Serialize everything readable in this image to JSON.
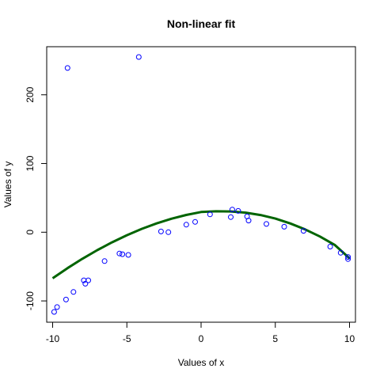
{
  "chart_data": {
    "type": "scatter",
    "title": "Non-linear fit",
    "xlabel": "Values of x",
    "ylabel": "Values of y",
    "xlim": [
      -10.4,
      10.4
    ],
    "ylim": [
      -131,
      270
    ],
    "x_ticks": [
      -10,
      -5,
      0,
      5,
      10
    ],
    "y_ticks": [
      -100,
      0,
      100,
      200
    ],
    "grid": false,
    "series": [
      {
        "kind": "points",
        "color": "#0000ff",
        "marker": "open-circle",
        "x": [
          -9.9,
          -9.7,
          -9.1,
          -9.0,
          -8.6,
          -7.9,
          -7.8,
          -7.6,
          -6.5,
          -5.5,
          -5.3,
          -4.9,
          -4.2,
          -2.7,
          -2.2,
          -1.0,
          -0.4,
          0.6,
          2.0,
          2.1,
          2.5,
          3.1,
          3.2,
          4.4,
          5.6,
          6.9,
          8.7,
          9.4,
          9.9,
          9.9
        ],
        "y": [
          -116,
          -109,
          -98,
          239,
          -87,
          -70,
          -75,
          -70,
          -42,
          -31,
          -32,
          -33,
          255,
          1,
          0,
          11,
          15,
          26,
          22,
          33,
          31,
          23,
          17,
          12,
          8,
          2,
          -21,
          -30,
          -39,
          -36
        ]
      },
      {
        "kind": "line",
        "color": "#006400",
        "x": [
          -10.0,
          -9.0,
          -8.0,
          -7.0,
          -6.0,
          -5.0,
          -4.0,
          -3.0,
          -2.0,
          -1.0,
          0.0,
          1.0,
          2.0,
          3.0,
          4.0,
          5.0,
          6.0,
          7.0,
          8.0,
          9.0,
          10.0
        ],
        "y": [
          -67.0,
          -52.3,
          -38.7,
          -26.1,
          -14.7,
          -4.4,
          4.8,
          12.8,
          19.6,
          25.1,
          29.4,
          30.4,
          30.2,
          28.5,
          25.0,
          19.8,
          12.8,
          4.2,
          -6.2,
          -18.4,
          -38.0
        ]
      }
    ]
  }
}
